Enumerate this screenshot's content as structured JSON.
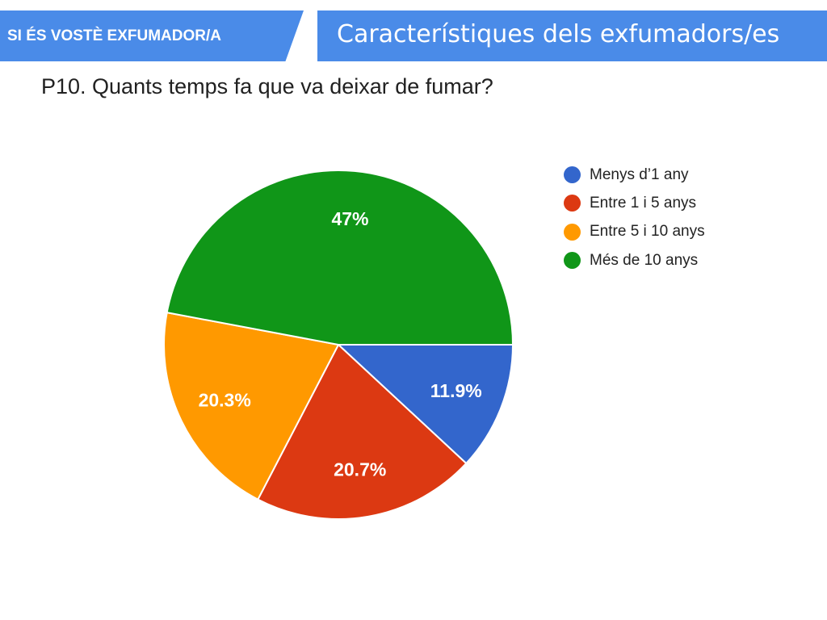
{
  "header": {
    "section_label": "SI ÉS VOSTÈ EXFUMADOR/A",
    "slide_title": "Característiques dels exfumadors/es"
  },
  "chart_data": {
    "type": "pie",
    "title": "P10. Quants temps fa que va deixar de fumar?",
    "categories": [
      "Menys d’1 any",
      "Entre 1 i 5 anys",
      "Entre 5 i 10 anys",
      "Més de 10 anys"
    ],
    "values": [
      11.9,
      20.7,
      20.3,
      47
    ],
    "data_labels": [
      "11.9%",
      "20.7%",
      "20.3%",
      "47%"
    ],
    "colors": [
      "#3366cc",
      "#dc3912",
      "#ff9900",
      "#109618"
    ],
    "legend_position": "right",
    "start": "east",
    "direction": "clockwise"
  }
}
